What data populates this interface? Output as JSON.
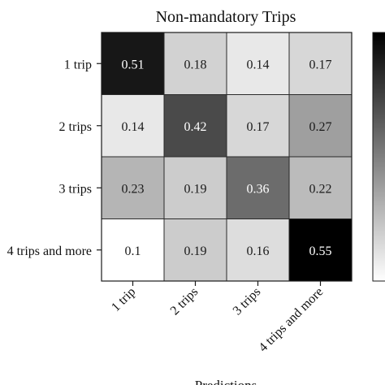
{
  "chart_data": {
    "type": "heatmap",
    "title": "Non-mandatory Trips",
    "xlabel": "Predictions",
    "ylabel": "",
    "rows": [
      "1 trip",
      "2 trips",
      "3 trips",
      "4 trips and more"
    ],
    "columns": [
      "1 trip",
      "2 trips",
      "3 trips",
      "4 trips and more"
    ],
    "values": [
      [
        0.51,
        0.18,
        0.14,
        0.17
      ],
      [
        0.14,
        0.42,
        0.17,
        0.27
      ],
      [
        0.23,
        0.19,
        0.36,
        0.22
      ],
      [
        0.1,
        0.19,
        0.16,
        0.55
      ]
    ],
    "color_scale": {
      "colormap": "greys",
      "vmin": 0.1,
      "vmax": 0.55,
      "low_color": "#ffffff",
      "high_color": "#000000"
    },
    "colorbar": true,
    "annotations": true
  }
}
